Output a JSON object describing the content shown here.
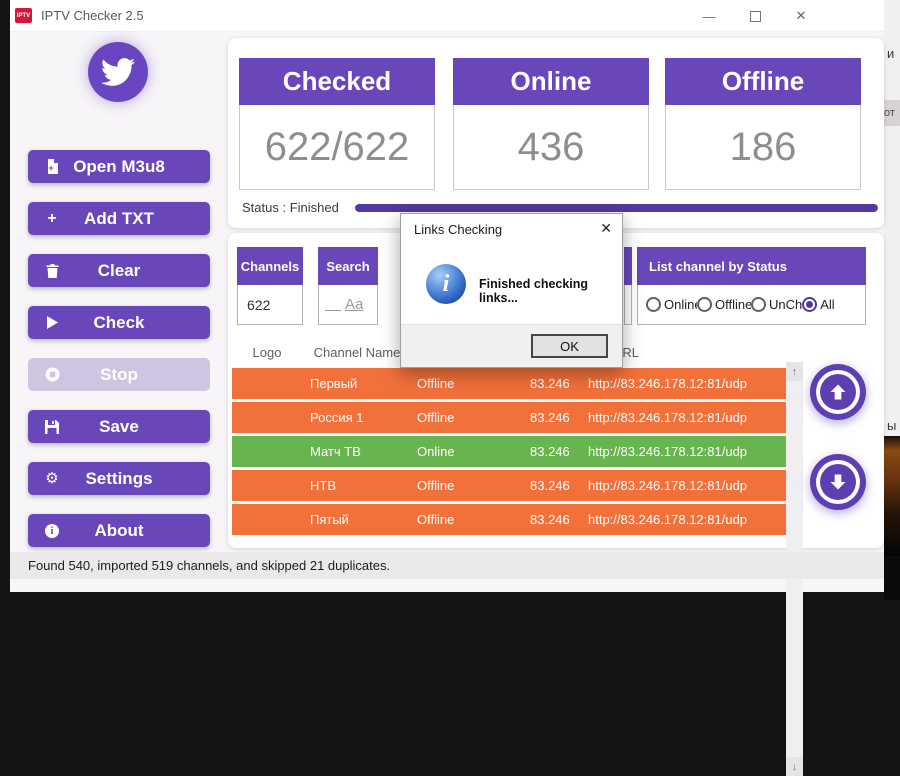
{
  "titlebar": {
    "app_icon_text": "IPTV",
    "title": "IPTV Checker 2.5",
    "minimize": "—",
    "close": "✕"
  },
  "sidebar": {
    "buttons": [
      {
        "label": "Open M3u8",
        "icon": "file-plus-icon",
        "disabled": false
      },
      {
        "label": "Add TXT",
        "icon": "plus-icon",
        "disabled": false
      },
      {
        "label": "Clear",
        "icon": "trash-icon",
        "disabled": false
      },
      {
        "label": "Check",
        "icon": "play-icon",
        "disabled": false
      },
      {
        "label": "Stop",
        "icon": "stop-icon",
        "disabled": true
      },
      {
        "label": "Save",
        "icon": "save-icon",
        "disabled": false
      },
      {
        "label": "Settings",
        "icon": "gear-icon",
        "disabled": false
      },
      {
        "label": "About",
        "icon": "info-icon",
        "disabled": false
      }
    ],
    "plus_glyph": "+",
    "gear_glyph": "⚙",
    "info_glyph": "i"
  },
  "stats": {
    "cards": [
      {
        "label": "Checked",
        "value": "622/622"
      },
      {
        "label": "Online",
        "value": "436"
      },
      {
        "label": "Offline",
        "value": "186"
      }
    ]
  },
  "status": {
    "text": "Status : Finished",
    "progress_percent": 100
  },
  "filters": {
    "channels": {
      "label": "Channels",
      "value": "622"
    },
    "search": {
      "label": "Search",
      "case_icon": "Aa"
    },
    "list_by_status": {
      "label": "List channel by Status",
      "options": [
        {
          "label": "Online",
          "selected": false
        },
        {
          "label": "Offline",
          "selected": false
        },
        {
          "label": "UnCh",
          "selected": false
        },
        {
          "label": "All",
          "selected": true
        }
      ]
    }
  },
  "table": {
    "headers": {
      "logo": "Logo",
      "name": "Channel Name",
      "url": "URL"
    },
    "rows": [
      {
        "name": "Первый",
        "status": "Offline",
        "ip": "83.246",
        "url": "http://83.246.178.12:81/udp",
        "state": "offline"
      },
      {
        "name": "Россия 1",
        "status": "Offline",
        "ip": "83.246",
        "url": "http://83.246.178.12:81/udp",
        "state": "offline"
      },
      {
        "name": "Матч ТВ",
        "status": "Online",
        "ip": "83.246",
        "url": "http://83.246.178.12:81/udp",
        "state": "online"
      },
      {
        "name": "НТВ",
        "status": "Offline",
        "ip": "83.246",
        "url": "http://83.246.178.12:81/udp",
        "state": "offline"
      },
      {
        "name": "Пятый",
        "status": "Offline",
        "ip": "83.246",
        "url": "http://83.246.178.12:81/udp",
        "state": "offline"
      }
    ],
    "scroll_up_glyph": "↑",
    "scroll_down_glyph": "↓"
  },
  "dialog": {
    "title": "Links Checking",
    "close": "✕",
    "message": "Finished checking links...",
    "ok_label": "OK"
  },
  "statusbar": {
    "text": "Found 540, imported 519 channels, and skipped 21 duplicates."
  },
  "background_fragments": {
    "top": "и",
    "chip": "от",
    "mid": "ы"
  },
  "colors": {
    "accent": "#6946ba",
    "progress": "#53389e",
    "row_online": "#68b44e",
    "row_offline": "#f2703a",
    "app_icon_red": "#d6173c"
  }
}
